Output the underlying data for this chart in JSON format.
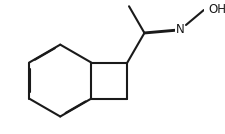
{
  "bg_color": "#ffffff",
  "line_color": "#1a1a1a",
  "line_width": 1.5,
  "doff": 0.012,
  "font_size_N": 8.5,
  "font_size_OH": 8.5,
  "figsize": [
    2.26,
    1.34
  ],
  "dpi": 100
}
